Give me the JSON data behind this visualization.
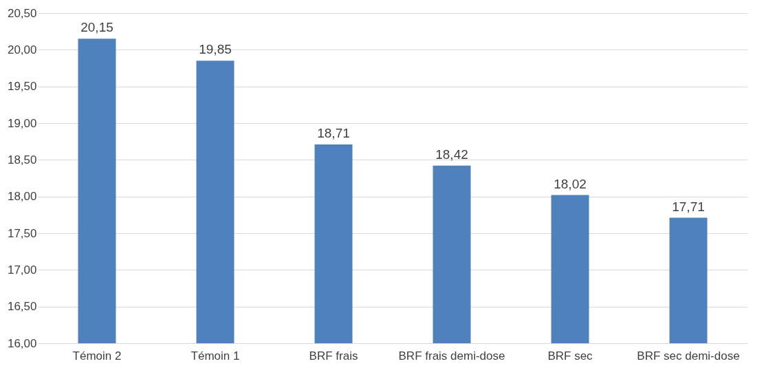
{
  "chart_data": {
    "type": "bar",
    "categories": [
      "Témoin 2",
      "Témoin 1",
      "BRF frais",
      "BRF frais demi-dose",
      "BRF sec",
      "BRF sec demi-dose"
    ],
    "values": [
      20.15,
      19.85,
      18.71,
      18.42,
      18.02,
      17.71
    ],
    "value_labels": [
      "20,15",
      "19,85",
      "18,71",
      "18,42",
      "18,02",
      "17,71"
    ],
    "color": "#4f81bd",
    "ylim": [
      16,
      20.5
    ],
    "yticks": [
      {
        "value": 16,
        "label": "16,00"
      },
      {
        "value": 16.5,
        "label": "16,50"
      },
      {
        "value": 17,
        "label": "17,00"
      },
      {
        "value": 17.5,
        "label": "17,50"
      },
      {
        "value": 18,
        "label": "18,00"
      },
      {
        "value": 18.5,
        "label": "18,50"
      },
      {
        "value": 19,
        "label": "19,00"
      },
      {
        "value": 19.5,
        "label": "19,50"
      },
      {
        "value": 20,
        "label": "20,00"
      },
      {
        "value": 20.5,
        "label": "20,50"
      }
    ],
    "grid": "y"
  }
}
